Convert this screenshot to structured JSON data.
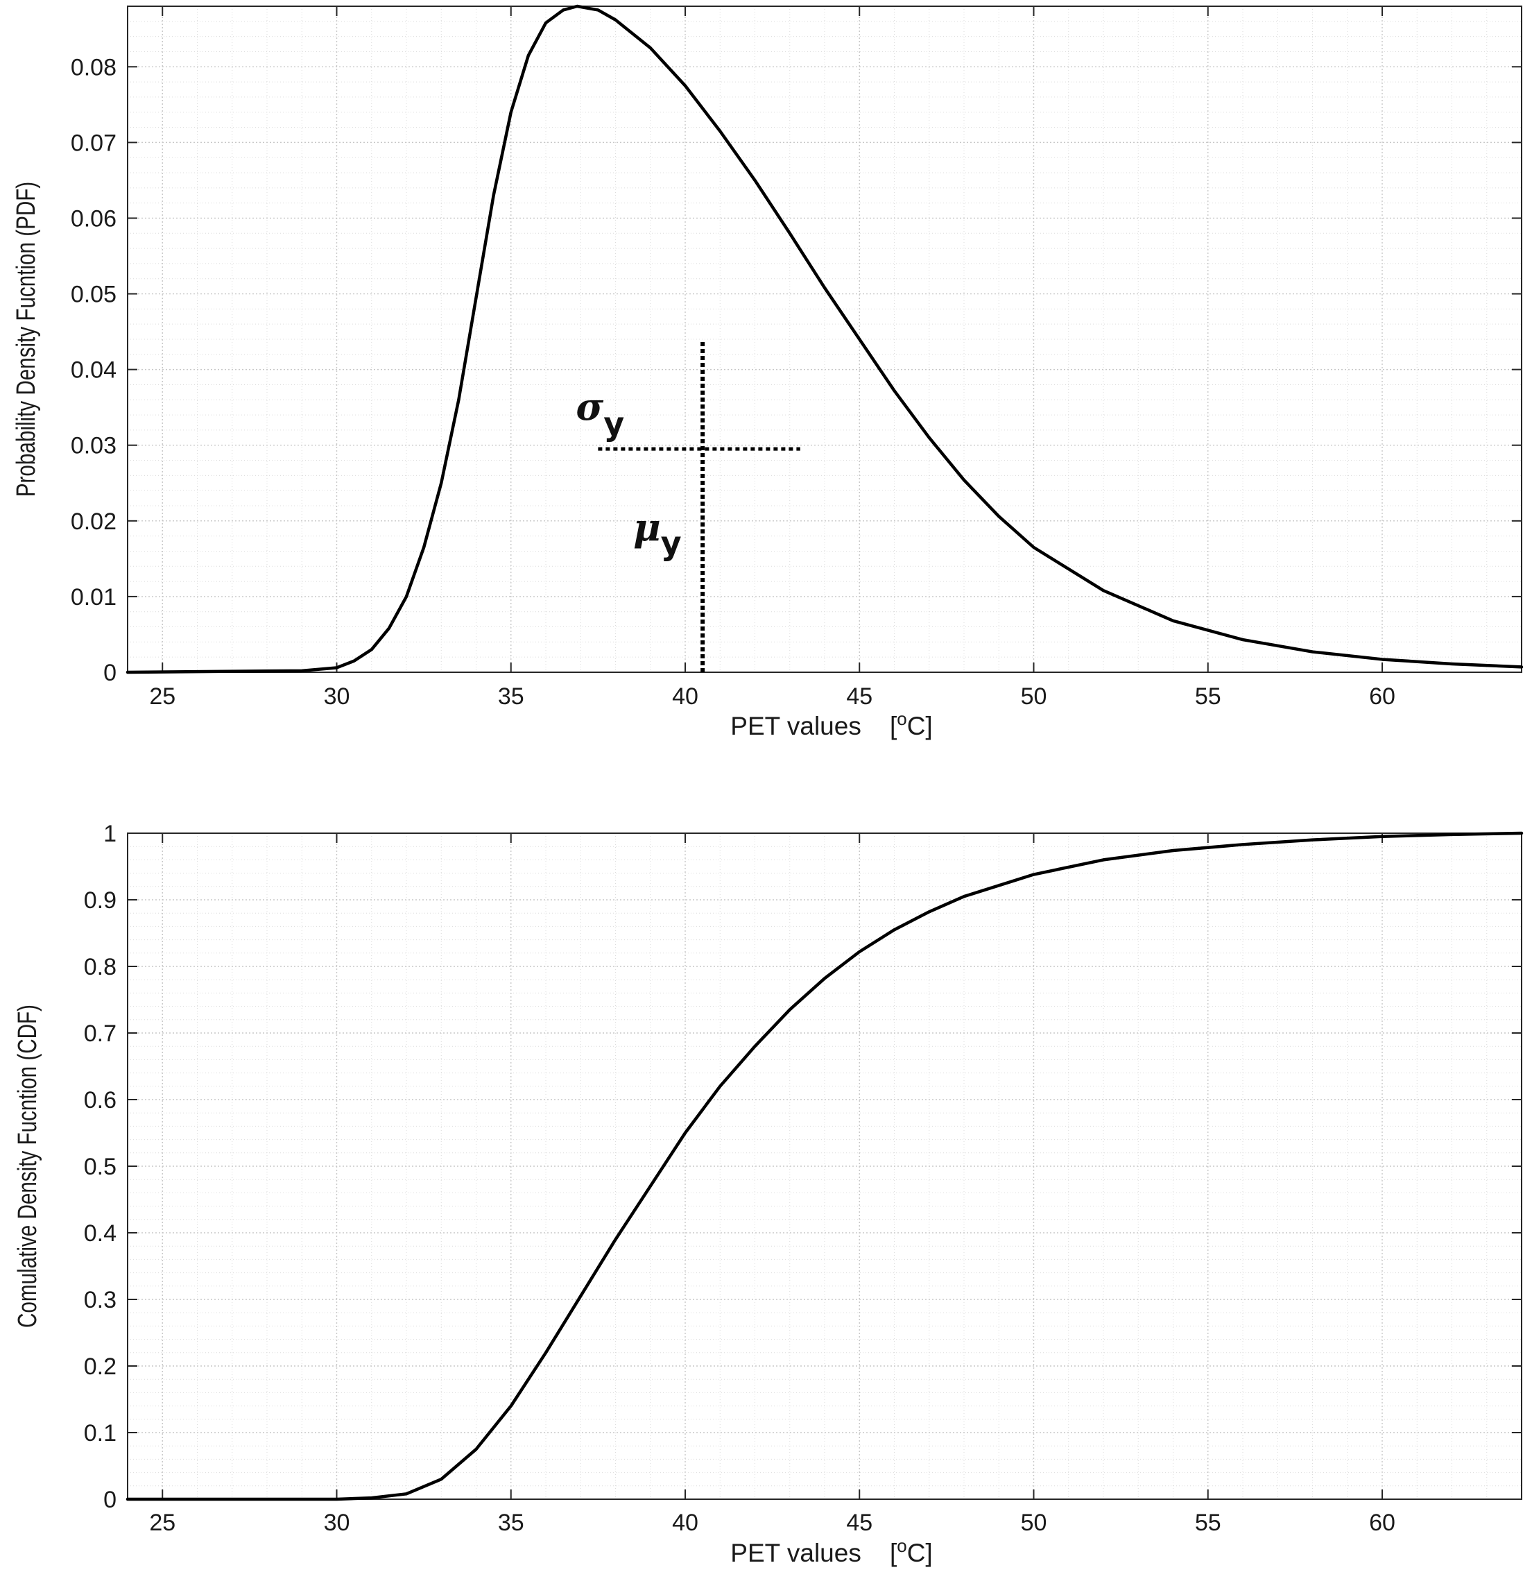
{
  "chart_data": [
    {
      "id": "pdf",
      "type": "line",
      "xlabel": "PET values",
      "xunit_open": "[",
      "xunit_sup": "o",
      "xunit_close": "C]",
      "ylabel": "Probability Density Fucntion (PDF)",
      "xlim": [
        24,
        64
      ],
      "ylim": [
        0,
        0.088
      ],
      "xticks": [
        25,
        30,
        35,
        40,
        45,
        50,
        55,
        60
      ],
      "yticks": [
        0,
        0.01,
        0.02,
        0.03,
        0.04,
        0.05,
        0.06,
        0.07,
        0.08
      ],
      "ytick_labels": [
        "0",
        "0.01",
        "0.02",
        "0.03",
        "0.04",
        "0.05",
        "0.06",
        "0.07",
        "0.08"
      ],
      "grid": true,
      "series": [
        {
          "name": "PDF",
          "x": [
            24,
            29,
            30,
            30.5,
            31,
            31.5,
            32,
            32.5,
            33,
            33.5,
            34,
            34.5,
            35,
            35.5,
            36,
            36.5,
            36.9,
            37.5,
            38,
            39,
            40,
            41,
            42,
            43,
            44,
            45,
            46,
            47,
            48,
            49,
            50,
            52,
            54,
            56,
            58,
            60,
            62,
            64
          ],
          "y": [
            0,
            0.0002,
            0.0006,
            0.0015,
            0.003,
            0.0058,
            0.01,
            0.0165,
            0.025,
            0.036,
            0.0495,
            0.063,
            0.074,
            0.0815,
            0.0858,
            0.0875,
            0.088,
            0.0875,
            0.0862,
            0.0825,
            0.0775,
            0.0715,
            0.065,
            0.058,
            0.0508,
            0.044,
            0.0372,
            0.031,
            0.0254,
            0.0206,
            0.0165,
            0.0108,
            0.0068,
            0.0043,
            0.0027,
            0.0017,
            0.0011,
            0.0007
          ]
        }
      ],
      "annotations": {
        "mu_x": 40.5,
        "mu_y_range": [
          0,
          0.044
        ],
        "sigma_y": 0.0295,
        "sigma_x_range": [
          37.5,
          43.3
        ],
        "sigma_text": "σ",
        "sigma_sub": "y",
        "mu_text": "μ",
        "mu_sub": "y"
      }
    },
    {
      "id": "cdf",
      "type": "line",
      "xlabel": "PET values",
      "xunit_open": "[",
      "xunit_sup": "o",
      "xunit_close": "C]",
      "ylabel": "Comulative Density Fucntion (CDF)",
      "xlim": [
        24,
        64
      ],
      "ylim": [
        0,
        1
      ],
      "xticks": [
        25,
        30,
        35,
        40,
        45,
        50,
        55,
        60
      ],
      "yticks": [
        0,
        0.1,
        0.2,
        0.3,
        0.4,
        0.5,
        0.6,
        0.7,
        0.8,
        0.9,
        1
      ],
      "ytick_labels": [
        "0",
        "0.1",
        "0.2",
        "0.3",
        "0.4",
        "0.5",
        "0.6",
        "0.7",
        "0.8",
        "0.9",
        "1"
      ],
      "grid": true,
      "series": [
        {
          "name": "CDF",
          "x": [
            24,
            30,
            31,
            32,
            33,
            34,
            35,
            36,
            37,
            38,
            39,
            40,
            41,
            42,
            43,
            44,
            45,
            46,
            47,
            48,
            50,
            52,
            54,
            56,
            58,
            60,
            62,
            64
          ],
          "y": [
            0,
            0,
            0.002,
            0.008,
            0.03,
            0.075,
            0.14,
            0.22,
            0.305,
            0.39,
            0.47,
            0.55,
            0.62,
            0.68,
            0.735,
            0.782,
            0.822,
            0.855,
            0.882,
            0.905,
            0.938,
            0.96,
            0.974,
            0.983,
            0.99,
            0.995,
            0.998,
            1
          ]
        }
      ]
    }
  ]
}
